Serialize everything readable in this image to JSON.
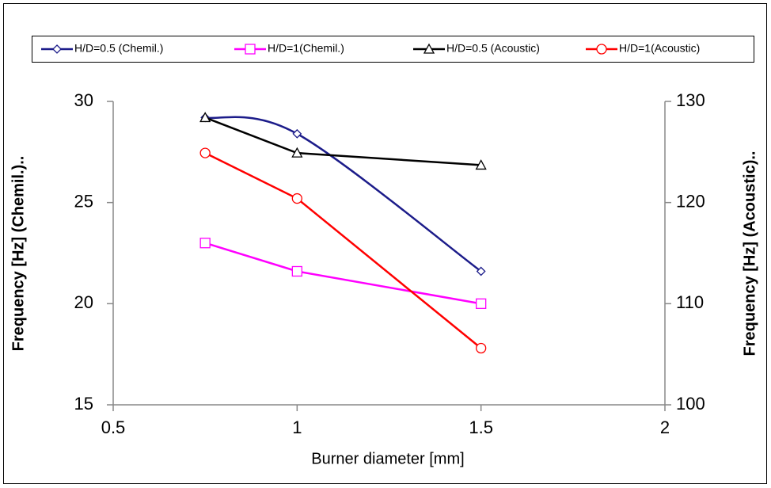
{
  "chart_data": {
    "type": "line",
    "xlabel": "Burner diameter [mm]",
    "ylabel": "Frequency [Hz] (Chemil.)..",
    "y2label": "Frequency [Hz] (Acoustic)..",
    "xlim": [
      0.5,
      2
    ],
    "xticks": [
      0.5,
      1,
      1.5,
      2
    ],
    "ylim": [
      15,
      30
    ],
    "yticks": [
      15,
      20,
      25,
      30
    ],
    "y2lim": [
      100,
      130
    ],
    "y2ticks": [
      100,
      110,
      120,
      130
    ],
    "legend": "top",
    "series": [
      {
        "name": "H/D=0.5 (Chemil.)",
        "color": "#1c1c8a",
        "marker": "diamond",
        "smooth": true,
        "x": [
          0.75,
          1,
          1.5
        ],
        "values": [
          29.2,
          28.4,
          21.6
        ]
      },
      {
        "name": "H/D=1(Chemil.)",
        "color": "#ff00ff",
        "marker": "square",
        "smooth": false,
        "x": [
          0.75,
          1,
          1.5
        ],
        "values": [
          23.0,
          21.6,
          20.0
        ]
      },
      {
        "name": "H/D=0.5 (Acoustic)",
        "color": "#000000",
        "marker": "triangle",
        "smooth": false,
        "axis": "y2",
        "x": [
          0.75,
          1,
          1.5
        ],
        "values": [
          128.4,
          124.9,
          123.7
        ]
      },
      {
        "name": "H/D=1(Acoustic)",
        "color": "#ff0000",
        "marker": "circle",
        "smooth": false,
        "axis": "y2",
        "x": [
          0.75,
          1,
          1.5
        ],
        "values": [
          124.9,
          120.4,
          105.6
        ]
      }
    ]
  }
}
